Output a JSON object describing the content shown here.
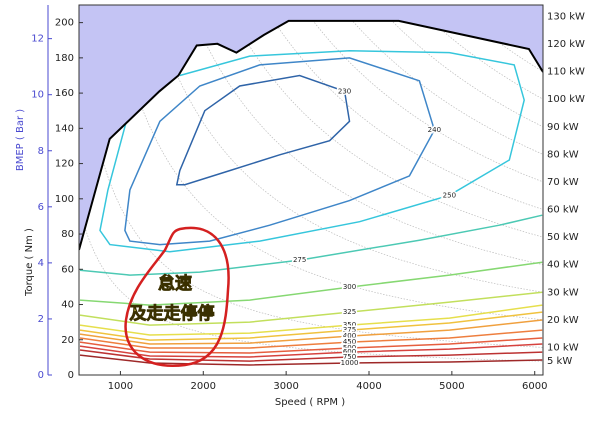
{
  "chart_data": {
    "type": "contour",
    "x_label": "Speed ( RPM )",
    "y_label": "Torque ( Nm )",
    "y2_label": "BMEP ( Bar )",
    "xlim": [
      500,
      6100
    ],
    "xticks": [
      1000,
      2000,
      3000,
      4000,
      5000,
      6000
    ],
    "ylim": [
      0,
      210
    ],
    "yticks": [
      0,
      20,
      40,
      60,
      80,
      100,
      120,
      140,
      160,
      180,
      200
    ],
    "y2lim": [
      0,
      13.2
    ],
    "y2ticks": [
      0,
      2,
      4,
      6,
      8,
      10,
      12
    ],
    "y2_color": "#4a4ad0",
    "max_torque": {
      "color": "#000000",
      "fill": "#c4c4f4",
      "x": [
        500,
        870,
        1470,
        1700,
        1920,
        2170,
        2400,
        2730,
        3030,
        4360,
        5930,
        6100
      ],
      "y": [
        71,
        134,
        161,
        170,
        187,
        188,
        183,
        193,
        201,
        201,
        185,
        172
      ]
    },
    "power_lines": [
      {
        "value": 5,
        "label": "5 kW"
      },
      {
        "value": 10,
        "label": "10 kW"
      },
      {
        "value": 20,
        "label": "20 kW"
      },
      {
        "value": 30,
        "label": "30 kW"
      },
      {
        "value": 40,
        "label": "40 kW"
      },
      {
        "value": 50,
        "label": "50 kW"
      },
      {
        "value": 60,
        "label": "60 kW"
      },
      {
        "value": 70,
        "label": "70 kW"
      },
      {
        "value": 80,
        "label": "80 kW"
      },
      {
        "value": 90,
        "label": "90 kW"
      },
      {
        "value": 100,
        "label": "100 kW"
      },
      {
        "value": 110,
        "label": "110 kW"
      },
      {
        "value": 120,
        "label": "120 kW"
      },
      {
        "value": 130,
        "label": "130 kW"
      }
    ],
    "contours": [
      {
        "level": 230,
        "color": "#2f64a8",
        "closed": true,
        "x": [
          1680,
          1717,
          2018,
          2440,
          3163,
          3705,
          3765,
          3524,
          2922,
          2319,
          1777
        ],
        "y": [
          108,
          116,
          150,
          164,
          170,
          161,
          144,
          133,
          125,
          116,
          108
        ]
      },
      {
        "level": 240,
        "color": "#3f86c8",
        "closed": true,
        "x": [
          1054,
          1114,
          1476,
          1958,
          2681,
          3765,
          4608,
          4789,
          4488,
          3765,
          2801,
          2078,
          1476,
          1114
        ],
        "y": [
          82,
          105,
          144,
          164,
          176,
          180,
          167,
          139,
          113,
          99,
          85,
          76,
          74,
          76
        ]
      },
      {
        "level": 250,
        "color": "#36c6dc",
        "closed": false,
        "x": [
          1066,
          849,
          753,
          873,
          1596,
          2681,
          3886,
          4970,
          5693,
          5873,
          5753,
          4970,
          3765,
          2560,
          1717
        ],
        "y": [
          143,
          105,
          82,
          74,
          70,
          76,
          87,
          102,
          122,
          156,
          176,
          183,
          184,
          181,
          170
        ]
      },
      {
        "level": 275,
        "color": "#4cc9b4",
        "closed": false,
        "x": [
          512,
          1114,
          1958,
          3163,
          4608,
          5572,
          6090
        ],
        "y": [
          59.5,
          56.7,
          58.4,
          65.2,
          76.5,
          85,
          90.7
        ]
      },
      {
        "level": 300,
        "color": "#86d872",
        "closed": false,
        "x": [
          512,
          1355,
          2560,
          3765,
          4970,
          6090
        ],
        "y": [
          42.5,
          39.7,
          42.5,
          49.9,
          56.7,
          64
        ]
      },
      {
        "level": 325,
        "color": "#c2df5c",
        "closed": false,
        "x": [
          512,
          1355,
          2560,
          3765,
          4970,
          6090
        ],
        "y": [
          34,
          28.3,
          30,
          35.7,
          41.4,
          47
        ]
      },
      {
        "level": 350,
        "color": "#e6df4c",
        "closed": false,
        "x": [
          512,
          1355,
          2560,
          3765,
          4970,
          6090
        ],
        "y": [
          28.3,
          22.7,
          23.8,
          28.3,
          32.3,
          39.7
        ]
      },
      {
        "level": 375,
        "color": "#f0c23e",
        "closed": false,
        "x": [
          512,
          1355,
          2560,
          3765,
          4970,
          6090
        ],
        "y": [
          25.5,
          19.8,
          21.0,
          25.5,
          29.5,
          35.7
        ]
      },
      {
        "level": 400,
        "color": "#f0a03e",
        "closed": false,
        "x": [
          512,
          1355,
          2560,
          3765,
          4970,
          6090
        ],
        "y": [
          23.2,
          17.6,
          18.1,
          22.1,
          25.5,
          31.2
        ]
      },
      {
        "level": 450,
        "color": "#ee7e3e",
        "closed": false,
        "x": [
          512,
          1355,
          2560,
          3765,
          4970,
          6090
        ],
        "y": [
          21.0,
          15.3,
          15.3,
          18.7,
          21.0,
          25.5
        ]
      },
      {
        "level": 500,
        "color": "#e65e3e",
        "closed": false,
        "x": [
          512,
          1355,
          2560,
          3765,
          4970,
          6090
        ],
        "y": [
          18.7,
          13.0,
          12.5,
          15.3,
          17.6,
          21.0
        ]
      },
      {
        "level": 600,
        "color": "#d6423e",
        "closed": false,
        "x": [
          512,
          1355,
          2560,
          3765,
          4970,
          6090
        ],
        "y": [
          16.4,
          10.8,
          10.2,
          13.0,
          14.7,
          17.6
        ]
      },
      {
        "level": 750,
        "color": "#bc3232",
        "closed": false,
        "x": [
          512,
          1355,
          2560,
          3765,
          4970,
          6090
        ],
        "y": [
          14.2,
          9.1,
          7.9,
          10.2,
          11.3,
          13.0
        ]
      },
      {
        "level": 1000,
        "color": "#9e2828",
        "closed": false,
        "x": [
          512,
          1355,
          2560,
          3765,
          4970,
          6090
        ],
        "y": [
          11.3,
          6.8,
          5.7,
          6.8,
          7.4,
          8.5
        ]
      }
    ],
    "annotation": {
      "lines": [
        "怠速",
        "及走走停停"
      ],
      "color": "#d42020"
    }
  }
}
